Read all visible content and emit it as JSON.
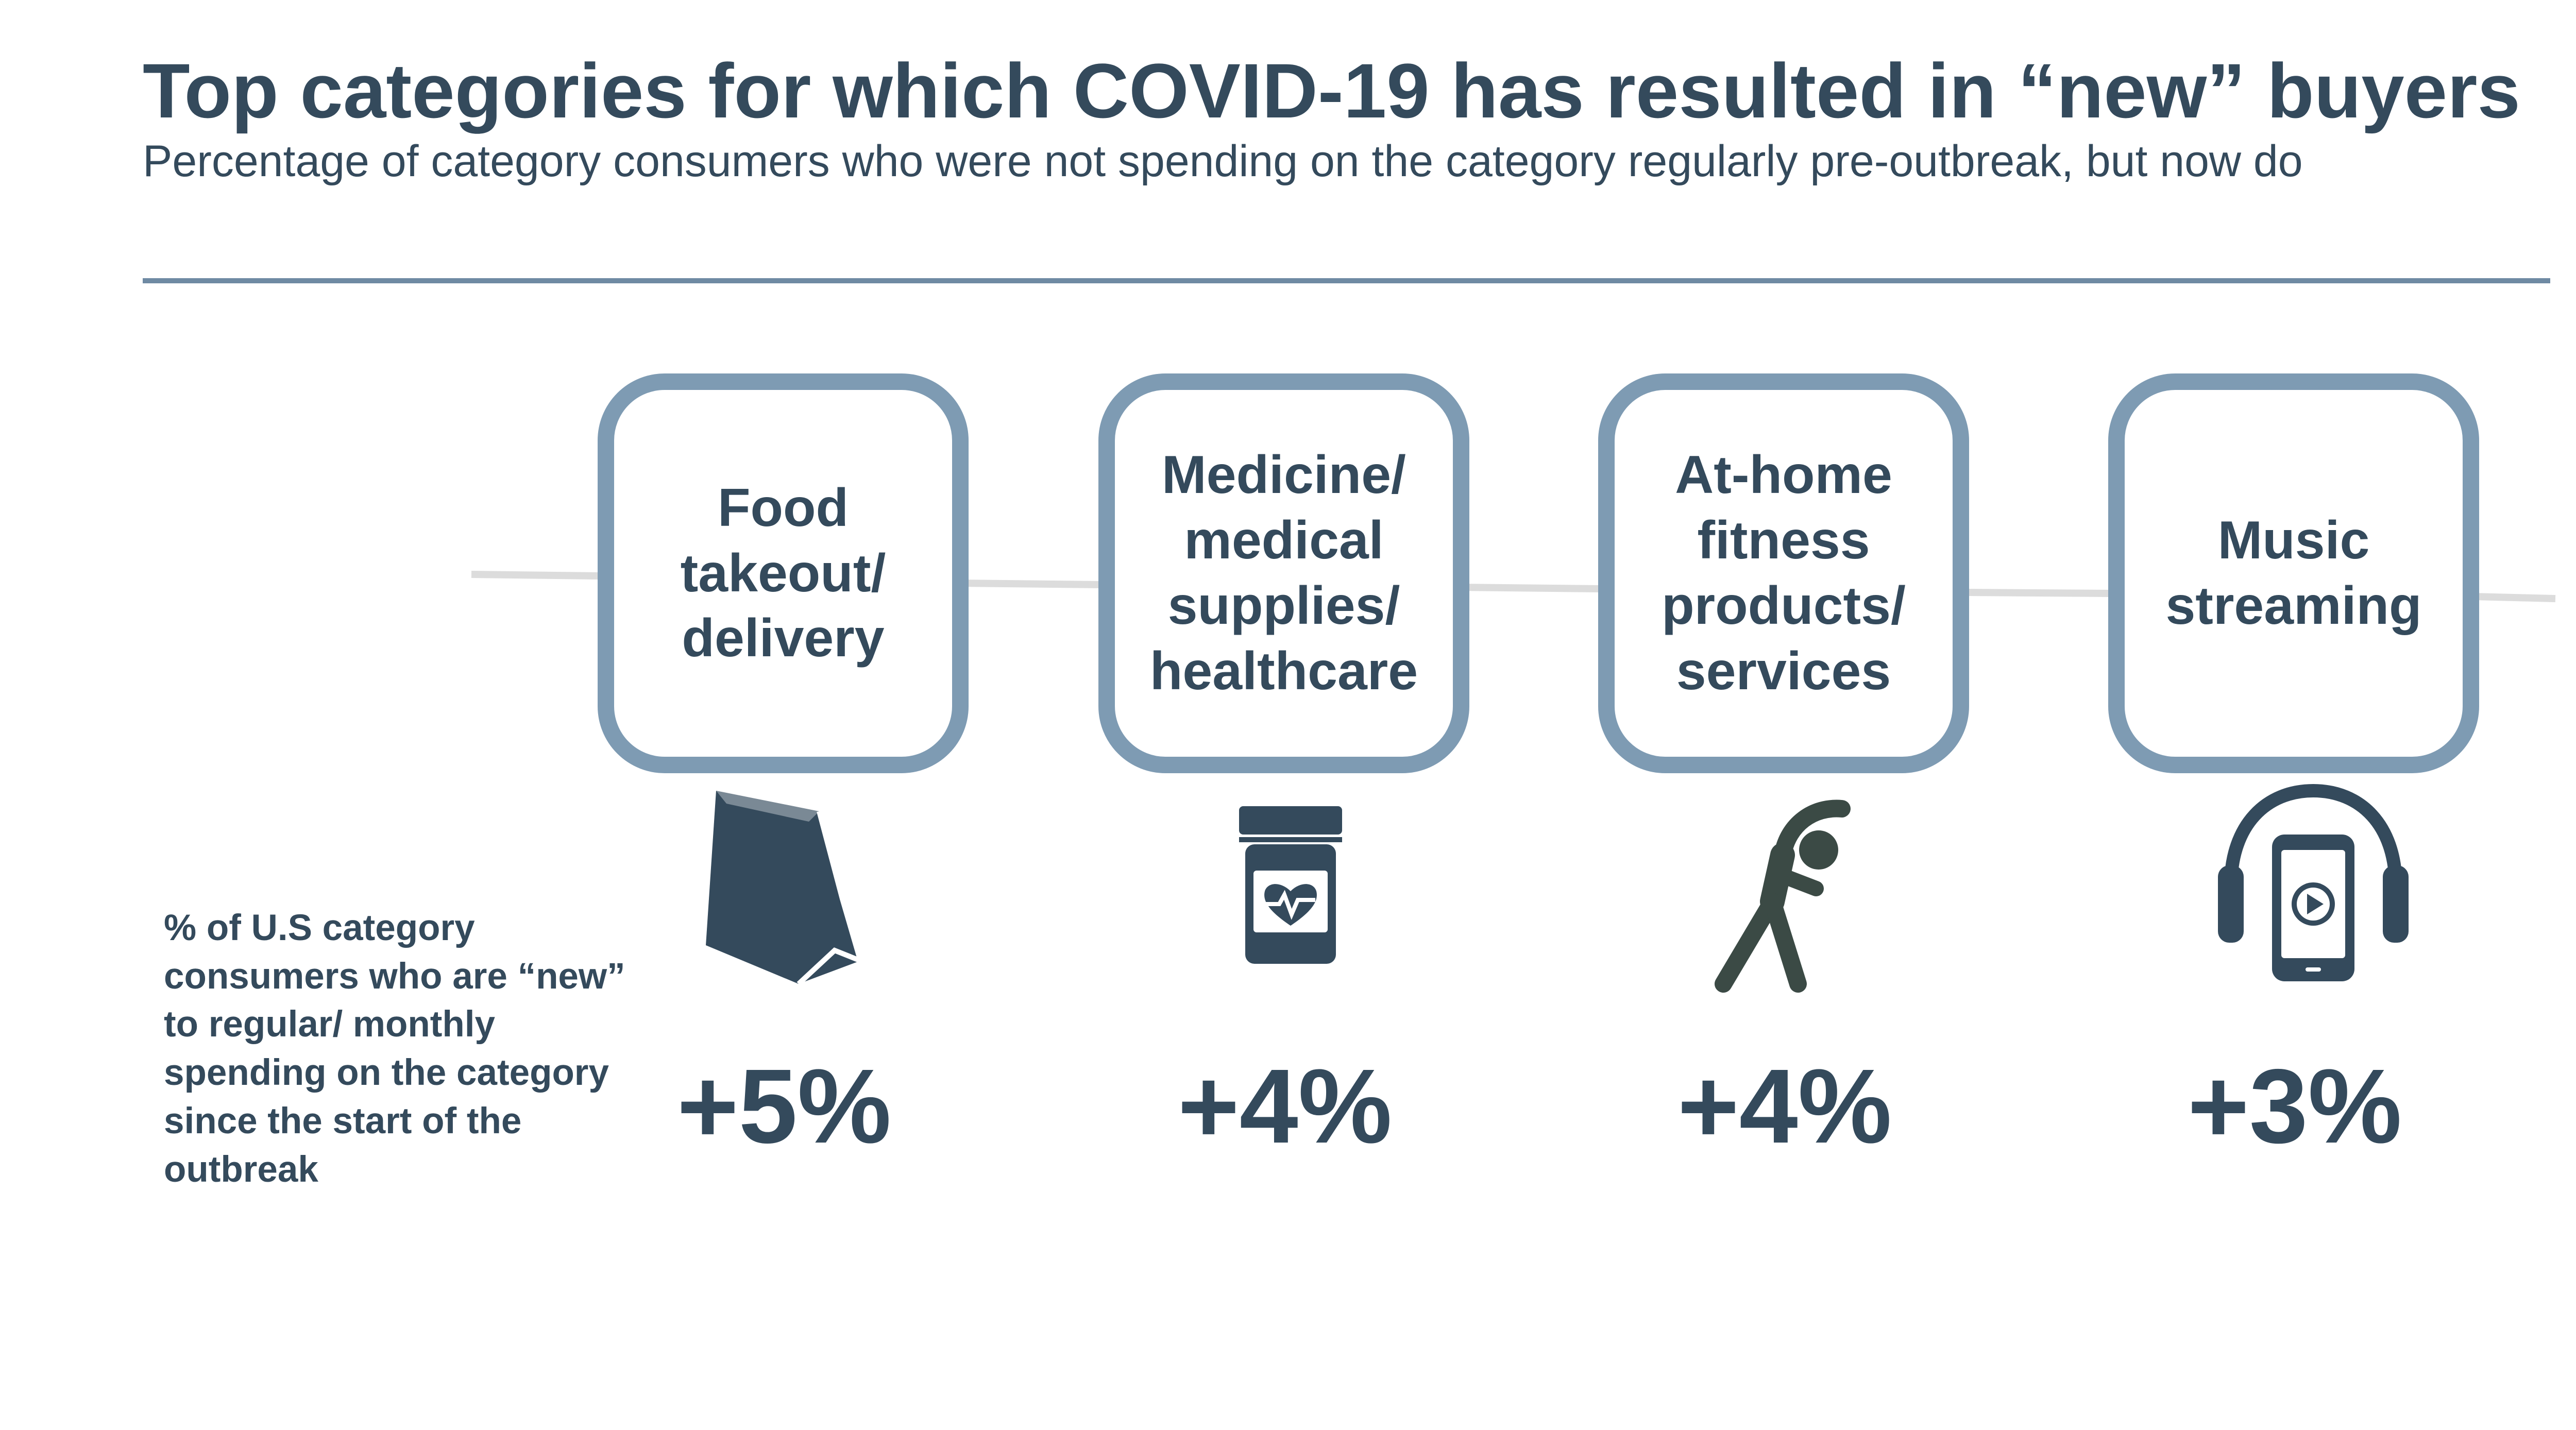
{
  "header": {
    "title": "Top categories for which COVID-19 has resulted in “new” buyers",
    "subtitle": "Percentage of category consumers who were not spending on the category regularly pre-outbreak, but now do"
  },
  "side_label": "% of U.S category consumers who are “new” to regular/ monthly spending on the category since the start of the outbreak",
  "colors": {
    "primary": "#344a5c",
    "card_border": "#7e9bb3",
    "rule": "#6f8aa3",
    "connector": "#dcdcdc"
  },
  "categories": [
    {
      "label": "Food takeout/ delivery",
      "value": "+5%",
      "icon": "takeout-bag-icon"
    },
    {
      "label": "Medicine/ medical supplies/ healthcare",
      "value": "+4%",
      "icon": "pill-bottle-icon"
    },
    {
      "label": "At-home fitness products/ services",
      "value": "+4%",
      "icon": "stretching-person-icon"
    },
    {
      "label": "Music streaming",
      "value": "+3%",
      "icon": "phone-headphones-icon"
    }
  ]
}
